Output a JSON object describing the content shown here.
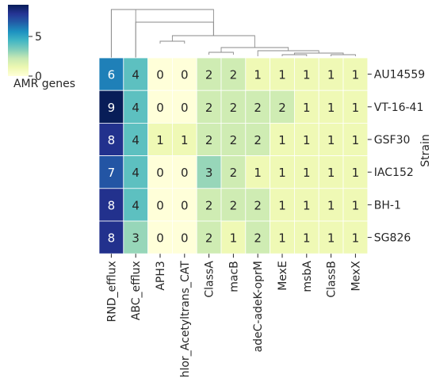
{
  "chart_data": {
    "type": "heatmap",
    "title": "",
    "xlabel": "",
    "ylabel": "Strain",
    "colorbar": {
      "label": "AMR genes",
      "ticks": [
        "0",
        "5"
      ],
      "range": [
        0,
        9
      ],
      "colormap": "YlGnBu",
      "stops": [
        "#ffffd9",
        "#edf8b1",
        "#c7e9b4",
        "#7fcdbb",
        "#41b6c4",
        "#1d91c0",
        "#225ea8",
        "#253494",
        "#081d58"
      ]
    },
    "columns": [
      "RND_efflux",
      "ABC_efflux",
      "APH3",
      "Chlor_Acetyltrans_CAT",
      "ClassA",
      "macB",
      "adeC-adeK-oprM",
      "MexE",
      "msbA",
      "ClassB",
      "MexX"
    ],
    "rows": [
      "AU14559",
      "VT-16-41",
      "GSF30",
      "IAC152",
      "BH-1",
      "SG826"
    ],
    "values": [
      [
        6,
        4,
        0,
        0,
        2,
        2,
        1,
        1,
        1,
        1,
        1
      ],
      [
        9,
        4,
        0,
        0,
        2,
        2,
        2,
        2,
        1,
        1,
        1
      ],
      [
        8,
        4,
        1,
        1,
        2,
        2,
        2,
        1,
        1,
        1,
        1
      ],
      [
        7,
        4,
        0,
        0,
        3,
        2,
        1,
        1,
        1,
        1,
        1
      ],
      [
        8,
        4,
        0,
        0,
        2,
        2,
        2,
        1,
        1,
        1,
        1
      ],
      [
        8,
        3,
        0,
        0,
        2,
        1,
        2,
        1,
        1,
        1,
        1
      ]
    ],
    "dendrogram": "column clustering tree shown above the heatmap"
  }
}
